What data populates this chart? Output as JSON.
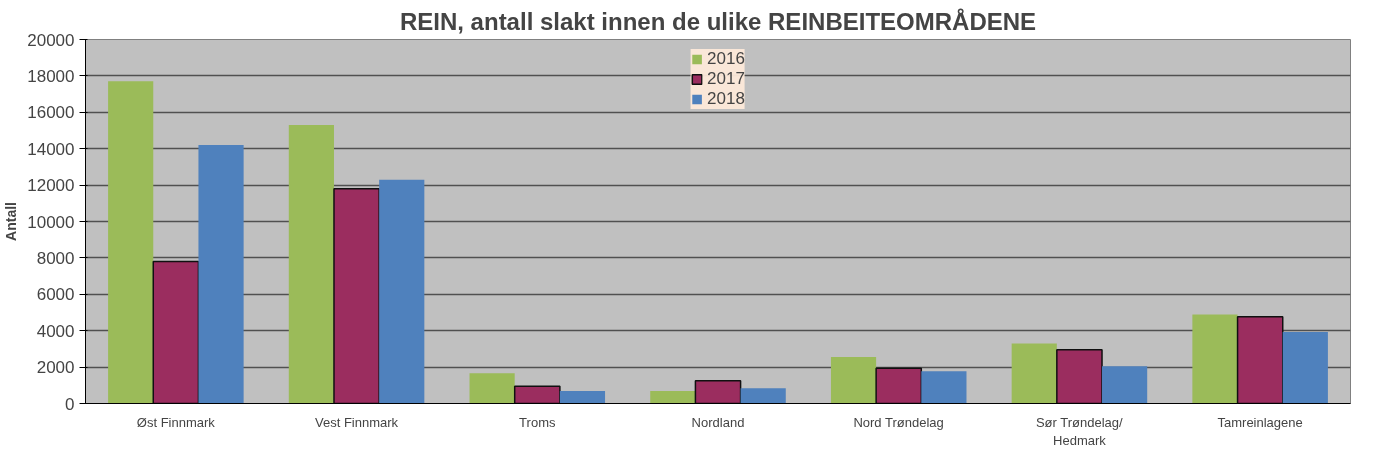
{
  "chart_data": {
    "type": "bar",
    "title": "REIN, antall slakt innen de ulike REINBEITEOMRÅDENE",
    "ylabel": "Antall",
    "categories": [
      "Øst Finnmark",
      "Vest Finnmark",
      "Troms",
      "Nordland",
      "Nord Trøndelag",
      "Sør Trøndelag/\nHedmark",
      "Tamreinlagene"
    ],
    "series": [
      {
        "name": "2016",
        "color": "#9bbb59",
        "values": [
          17700,
          15300,
          1660,
          680,
          2550,
          3300,
          4890
        ]
      },
      {
        "name": "2017",
        "color": "#9b2d5f",
        "values": [
          7800,
          11800,
          950,
          1250,
          1930,
          2950,
          4770
        ]
      },
      {
        "name": "2018",
        "color": "#4f81bd",
        "values": [
          14200,
          12300,
          680,
          840,
          1770,
          2050,
          3930
        ]
      }
    ],
    "ylim": [
      0,
      20000
    ],
    "yticks": [
      0,
      2000,
      4000,
      6000,
      8000,
      10000,
      12000,
      14000,
      16000,
      18000,
      20000
    ],
    "grid": "y",
    "legend": "top"
  }
}
